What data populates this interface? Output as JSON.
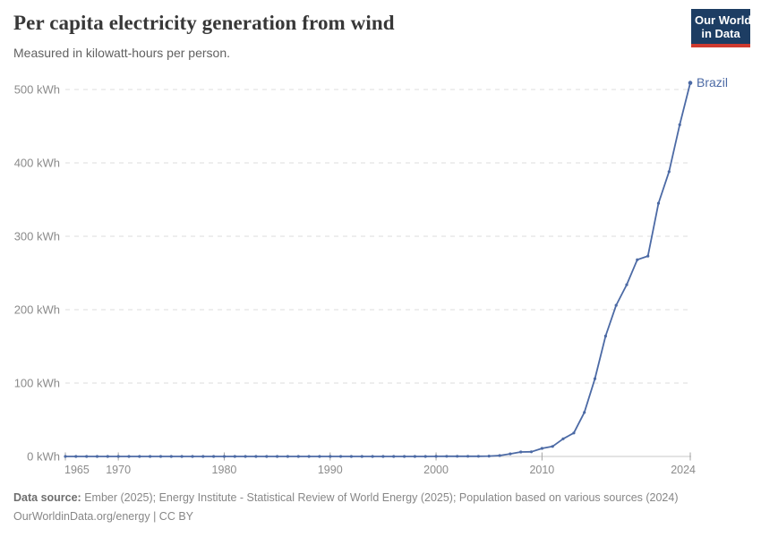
{
  "header": {
    "title": "Per capita electricity generation from wind",
    "subtitle": "Measured in kilowatt-hours per person.",
    "logo": {
      "line1": "Our World",
      "line2": "in Data",
      "bg_color": "#1d3d63",
      "accent_color": "#cf3a2f"
    }
  },
  "chart_data": {
    "type": "line",
    "title": "Per capita electricity generation from wind",
    "unit": "kWh",
    "xlabel": "",
    "ylabel": "",
    "xlim": [
      1965,
      2024
    ],
    "ylim": [
      0,
      500
    ],
    "x_ticks": [
      1965,
      1970,
      1980,
      1990,
      2000,
      2010,
      2024
    ],
    "y_ticks": [
      0,
      100,
      200,
      300,
      400,
      500
    ],
    "y_tick_suffix": " kWh",
    "grid": "dashed-horizontal",
    "legend_position": "end-of-line-label",
    "x": [
      1965,
      1966,
      1967,
      1968,
      1969,
      1970,
      1971,
      1972,
      1973,
      1974,
      1975,
      1976,
      1977,
      1978,
      1979,
      1980,
      1981,
      1982,
      1983,
      1984,
      1985,
      1986,
      1987,
      1988,
      1989,
      1990,
      1991,
      1992,
      1993,
      1994,
      1995,
      1996,
      1997,
      1998,
      1999,
      2000,
      2001,
      2002,
      2003,
      2004,
      2005,
      2006,
      2007,
      2008,
      2009,
      2010,
      2011,
      2012,
      2013,
      2014,
      2015,
      2016,
      2017,
      2018,
      2019,
      2020,
      2021,
      2022,
      2023,
      2024
    ],
    "series": [
      {
        "name": "Brazil",
        "color": "#4c6aa5",
        "values": [
          0,
          0,
          0,
          0,
          0,
          0,
          0,
          0,
          0,
          0,
          0,
          0,
          0,
          0,
          0,
          0,
          0,
          0,
          0,
          0,
          0,
          0,
          0,
          0,
          0,
          0,
          0,
          0,
          0,
          0,
          0,
          0,
          0,
          0,
          0,
          0.1,
          0.2,
          0.2,
          0.3,
          0.3,
          0.5,
          1.2,
          3.5,
          6.1,
          6.4,
          11,
          13.6,
          24,
          32,
          60,
          106,
          164,
          206,
          234,
          268,
          273,
          345,
          388,
          452,
          509
        ]
      }
    ]
  },
  "palette": {
    "grid": "#dcdcdc",
    "axis_line": "#c8c8c8",
    "tick_mark": "#a3a3a3",
    "axis_label": "#8b8b8b"
  },
  "footer": {
    "datasource_label": "Data source:",
    "datasource_text": " Ember (2025); Energy Institute - Statistical Review of World Energy (2025); Population based on various sources (2024)",
    "license_line": "OurWorldinData.org/energy | CC BY"
  }
}
